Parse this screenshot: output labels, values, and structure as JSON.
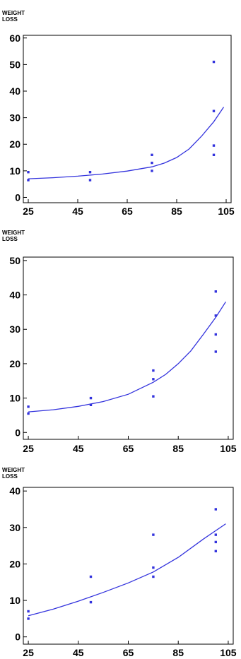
{
  "chart_data": [
    {
      "type": "scatter",
      "ylabel": "WEIGHT LOSS",
      "ylabel_lines": [
        "WEIGHT",
        "LOSS"
      ],
      "xlim": [
        23,
        107
      ],
      "ylim": [
        -2,
        61
      ],
      "x_ticks": [
        25,
        45,
        65,
        85,
        105
      ],
      "y_ticks": [
        0,
        10,
        20,
        30,
        40,
        50,
        60
      ],
      "series": [
        {
          "points": [
            {
              "x": 25,
              "y": 9.5
            },
            {
              "x": 25,
              "y": 6.5
            },
            {
              "x": 50,
              "y": 9.5
            },
            {
              "x": 50,
              "y": 6.5
            },
            {
              "x": 75,
              "y": 16
            },
            {
              "x": 75,
              "y": 13
            },
            {
              "x": 75,
              "y": 10
            },
            {
              "x": 100,
              "y": 51
            },
            {
              "x": 100,
              "y": 32.5
            },
            {
              "x": 100,
              "y": 19.5
            },
            {
              "x": 100,
              "y": 16
            }
          ],
          "fit_curve": [
            {
              "x": 25,
              "y": 7.0
            },
            {
              "x": 35,
              "y": 7.4
            },
            {
              "x": 45,
              "y": 8.0
            },
            {
              "x": 55,
              "y": 8.8
            },
            {
              "x": 65,
              "y": 9.9
            },
            {
              "x": 75,
              "y": 11.5
            },
            {
              "x": 80,
              "y": 12.9
            },
            {
              "x": 85,
              "y": 15.0
            },
            {
              "x": 90,
              "y": 18.2
            },
            {
              "x": 95,
              "y": 23.0
            },
            {
              "x": 100,
              "y": 28.5
            },
            {
              "x": 104,
              "y": 34.0
            }
          ]
        }
      ],
      "grid": false,
      "colors": {
        "series": "#3333dd",
        "axis": "#000000"
      }
    },
    {
      "type": "scatter",
      "ylabel": "WEIGHT LOSS",
      "ylabel_lines": [
        "WEIGHT",
        "LOSS"
      ],
      "xlim": [
        23,
        107
      ],
      "ylim": [
        -2,
        51
      ],
      "x_ticks": [
        25,
        45,
        65,
        85,
        105
      ],
      "y_ticks": [
        0,
        10,
        20,
        30,
        40,
        50
      ],
      "series": [
        {
          "points": [
            {
              "x": 25,
              "y": 7.5
            },
            {
              "x": 25,
              "y": 5.5
            },
            {
              "x": 50,
              "y": 10
            },
            {
              "x": 50,
              "y": 8
            },
            {
              "x": 75,
              "y": 18
            },
            {
              "x": 75,
              "y": 15.5
            },
            {
              "x": 75,
              "y": 10.5
            },
            {
              "x": 100,
              "y": 41
            },
            {
              "x": 100,
              "y": 34
            },
            {
              "x": 100,
              "y": 28.5
            },
            {
              "x": 100,
              "y": 23.5
            }
          ],
          "fit_curve": [
            {
              "x": 25,
              "y": 6.0
            },
            {
              "x": 35,
              "y": 6.6
            },
            {
              "x": 45,
              "y": 7.6
            },
            {
              "x": 55,
              "y": 9.0
            },
            {
              "x": 65,
              "y": 11.1
            },
            {
              "x": 75,
              "y": 14.6
            },
            {
              "x": 80,
              "y": 16.9
            },
            {
              "x": 85,
              "y": 20.0
            },
            {
              "x": 90,
              "y": 23.7
            },
            {
              "x": 95,
              "y": 28.5
            },
            {
              "x": 100,
              "y": 33.5
            },
            {
              "x": 104,
              "y": 38.0
            }
          ]
        }
      ],
      "grid": false,
      "colors": {
        "series": "#3333dd",
        "axis": "#000000"
      }
    },
    {
      "type": "scatter",
      "ylabel": "WEIGHT LOSS",
      "ylabel_lines": [
        "WEIGHT",
        "LOSS"
      ],
      "xlim": [
        23,
        107
      ],
      "ylim": [
        -2,
        41
      ],
      "x_ticks": [
        25,
        45,
        65,
        85,
        105
      ],
      "y_ticks": [
        0,
        10,
        20,
        30,
        40
      ],
      "series": [
        {
          "points": [
            {
              "x": 25,
              "y": 7
            },
            {
              "x": 25,
              "y": 5
            },
            {
              "x": 50,
              "y": 16.5
            },
            {
              "x": 50,
              "y": 9.5
            },
            {
              "x": 75,
              "y": 28
            },
            {
              "x": 75,
              "y": 19
            },
            {
              "x": 75,
              "y": 16.5
            },
            {
              "x": 100,
              "y": 35
            },
            {
              "x": 100,
              "y": 28
            },
            {
              "x": 100,
              "y": 26
            },
            {
              "x": 100,
              "y": 23.5
            }
          ],
          "fit_curve": [
            {
              "x": 25,
              "y": 5.8
            },
            {
              "x": 35,
              "y": 7.6
            },
            {
              "x": 45,
              "y": 9.8
            },
            {
              "x": 55,
              "y": 12.2
            },
            {
              "x": 65,
              "y": 14.8
            },
            {
              "x": 75,
              "y": 17.8
            },
            {
              "x": 85,
              "y": 21.8
            },
            {
              "x": 95,
              "y": 26.8
            },
            {
              "x": 104,
              "y": 31.0
            }
          ]
        }
      ],
      "grid": false,
      "colors": {
        "series": "#3333dd",
        "axis": "#000000"
      }
    }
  ]
}
